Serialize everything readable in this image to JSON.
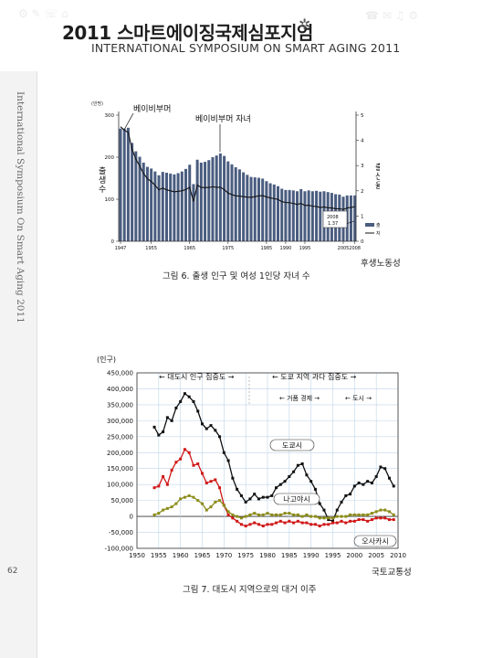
{
  "header": {
    "title_ko": "2011 스마트에이징국제심포지엄",
    "title_en": "INTERNATIONAL SYMPOSIUM ON SMART AGING 2011"
  },
  "sidebar": {
    "vertical_text": "International Symposium On Smart Aging 2011",
    "page_number": "62"
  },
  "figure1": {
    "caption": "그림 6. 출생 인구 및 여성 1인당 자녀 수",
    "source": "후생노동성",
    "unit_label": "(만명)",
    "annotation_baby_boomer": "베이비부머",
    "annotation_boomer_children": "베이비부머 자녀",
    "annotation_2008": "2008",
    "annotation_2008_value": "1.37",
    "chart_data": {
      "type": "bar",
      "title": "",
      "left_axis_label": "출생수",
      "right_axis_label": "출산율",
      "ylim": [
        0,
        300
      ],
      "y2lim": [
        0,
        5
      ],
      "left_ticks": [
        "0",
        "100",
        "200",
        "300"
      ],
      "right_ticks": [
        "0",
        "1",
        "2",
        "3",
        "4",
        "5"
      ],
      "x_ticks": [
        "1947",
        "1955",
        "1965",
        "1975",
        "1985",
        "1990",
        "1995",
        "2005",
        "2008"
      ],
      "legend": [
        "출생 인구",
        "자녀 수"
      ],
      "legend_position": "bottom-right",
      "bar_series": {
        "name": "출생 인구",
        "x": [
          1947,
          1948,
          1949,
          1950,
          1951,
          1952,
          1953,
          1954,
          1955,
          1956,
          1957,
          1958,
          1959,
          1960,
          1961,
          1962,
          1963,
          1964,
          1965,
          1966,
          1967,
          1968,
          1969,
          1970,
          1971,
          1972,
          1973,
          1974,
          1975,
          1976,
          1977,
          1978,
          1979,
          1980,
          1981,
          1982,
          1983,
          1984,
          1985,
          1986,
          1987,
          1988,
          1989,
          1990,
          1991,
          1992,
          1993,
          1994,
          1995,
          1996,
          1997,
          1998,
          1999,
          2000,
          2001,
          2002,
          2003,
          2004,
          2005,
          2006,
          2007,
          2008
        ],
        "values": [
          268,
          268,
          270,
          234,
          214,
          201,
          187,
          177,
          173,
          166,
          157,
          165,
          163,
          161,
          159,
          162,
          166,
          172,
          182,
          136,
          194,
          187,
          189,
          193,
          200,
          204,
          209,
          203,
          190,
          183,
          176,
          171,
          164,
          158,
          153,
          152,
          151,
          149,
          143,
          138,
          135,
          131,
          125,
          122,
          122,
          121,
          119,
          124,
          119,
          121,
          119,
          120,
          118,
          119,
          117,
          115,
          112,
          111,
          106,
          109,
          109,
          109
        ]
      },
      "line_series": {
        "name": "자녀 수",
        "x": [
          1947,
          1948,
          1949,
          1950,
          1951,
          1952,
          1953,
          1954,
          1955,
          1956,
          1957,
          1958,
          1959,
          1960,
          1961,
          1962,
          1963,
          1964,
          1965,
          1966,
          1967,
          1968,
          1969,
          1970,
          1971,
          1972,
          1973,
          1974,
          1975,
          1976,
          1977,
          1978,
          1979,
          1980,
          1981,
          1982,
          1983,
          1984,
          1985,
          1986,
          1987,
          1988,
          1989,
          1990,
          1991,
          1992,
          1993,
          1994,
          1995,
          1996,
          1997,
          1998,
          1999,
          2000,
          2001,
          2002,
          2003,
          2004,
          2005,
          2006,
          2007,
          2008
        ],
        "values": [
          4.54,
          4.4,
          4.32,
          3.65,
          3.26,
          2.98,
          2.69,
          2.48,
          2.37,
          2.22,
          2.04,
          2.11,
          2.04,
          2.0,
          1.96,
          1.98,
          2.0,
          2.05,
          2.14,
          1.58,
          2.23,
          2.13,
          2.13,
          2.13,
          2.16,
          2.14,
          2.14,
          2.05,
          1.91,
          1.85,
          1.8,
          1.79,
          1.77,
          1.75,
          1.74,
          1.77,
          1.8,
          1.81,
          1.76,
          1.72,
          1.69,
          1.66,
          1.57,
          1.54,
          1.53,
          1.5,
          1.46,
          1.5,
          1.42,
          1.43,
          1.39,
          1.38,
          1.34,
          1.36,
          1.33,
          1.32,
          1.29,
          1.29,
          1.26,
          1.32,
          1.34,
          1.37
        ]
      }
    }
  },
  "figure2": {
    "caption": "그림 7. 대도시 지역으로의 대거 이주",
    "source": "국토교통성",
    "unit_label": "(인구)",
    "header_left": "← 대도시 인구 집중도 →",
    "header_right": "← 도쿄 지역 과다 집중도 →",
    "sub_left": "← 거품 경제 →",
    "sub_right": "← 도시 →",
    "chart_data": {
      "type": "line",
      "title": "",
      "ylim": [
        -100000,
        450000
      ],
      "xlim": [
        1950,
        2010
      ],
      "y_ticks": [
        "450,000",
        "400,000",
        "350,000",
        "300,000",
        "250,000",
        "200,000",
        "150,000",
        "100,000",
        "50,000",
        "0",
        "-50,000",
        "-100,000"
      ],
      "x_ticks": [
        "1950",
        "1955",
        "1960",
        "1965",
        "1970",
        "1975",
        "1980",
        "1985",
        "1990",
        "1995",
        "2000",
        "2005",
        "2010"
      ],
      "grid": true,
      "series": [
        {
          "name": "도쿄시",
          "color": "#111111",
          "x": [
            1954,
            1955,
            1956,
            1957,
            1958,
            1959,
            1960,
            1961,
            1962,
            1963,
            1964,
            1965,
            1966,
            1967,
            1968,
            1969,
            1970,
            1971,
            1972,
            1973,
            1974,
            1975,
            1976,
            1977,
            1978,
            1979,
            1980,
            1981,
            1982,
            1983,
            1984,
            1985,
            1986,
            1987,
            1988,
            1989,
            1990,
            1991,
            1992,
            1993,
            1994,
            1995,
            1996,
            1997,
            1998,
            1999,
            2000,
            2001,
            2002,
            2003,
            2004,
            2005,
            2006,
            2007,
            2008,
            2009
          ],
          "values": [
            280000,
            255000,
            265000,
            310000,
            300000,
            340000,
            360000,
            385000,
            375000,
            360000,
            330000,
            290000,
            275000,
            285000,
            270000,
            250000,
            200000,
            175000,
            120000,
            85000,
            65000,
            45000,
            55000,
            70000,
            55000,
            60000,
            60000,
            65000,
            90000,
            100000,
            110000,
            125000,
            140000,
            160000,
            165000,
            130000,
            110000,
            85000,
            40000,
            20000,
            -10000,
            -15000,
            20000,
            45000,
            65000,
            70000,
            95000,
            105000,
            100000,
            110000,
            105000,
            125000,
            155000,
            150000,
            120000,
            95000
          ]
        },
        {
          "name": "나고야시",
          "color": "#d01818",
          "x": [
            1954,
            1955,
            1956,
            1957,
            1958,
            1959,
            1960,
            1961,
            1962,
            1963,
            1964,
            1965,
            1966,
            1967,
            1968,
            1969,
            1970,
            1971,
            1972,
            1973,
            1974,
            1975,
            1976,
            1977,
            1978,
            1979,
            1980,
            1981,
            1982,
            1983,
            1984,
            1985,
            1986,
            1987,
            1988,
            1989,
            1990,
            1991,
            1992,
            1993,
            1994,
            1995,
            1996,
            1997,
            1998,
            1999,
            2000,
            2001,
            2002,
            2003,
            2004,
            2005,
            2006,
            2007,
            2008,
            2009
          ],
          "values": [
            90000,
            95000,
            125000,
            100000,
            145000,
            170000,
            180000,
            210000,
            200000,
            160000,
            165000,
            135000,
            105000,
            110000,
            115000,
            90000,
            35000,
            5000,
            -5000,
            -15000,
            -25000,
            -30000,
            -25000,
            -20000,
            -25000,
            -30000,
            -25000,
            -25000,
            -20000,
            -15000,
            -20000,
            -15000,
            -20000,
            -15000,
            -20000,
            -20000,
            -25000,
            -25000,
            -30000,
            -25000,
            -25000,
            -20000,
            -20000,
            -15000,
            -20000,
            -15000,
            -15000,
            -10000,
            -10000,
            -15000,
            -10000,
            -5000,
            -5000,
            -5000,
            -10000,
            -10000
          ]
        },
        {
          "name": "오사카시",
          "color": "#8c8c1a",
          "x": [
            1954,
            1955,
            1956,
            1957,
            1958,
            1959,
            1960,
            1961,
            1962,
            1963,
            1964,
            1965,
            1966,
            1967,
            1968,
            1969,
            1970,
            1971,
            1972,
            1973,
            1974,
            1975,
            1976,
            1977,
            1978,
            1979,
            1980,
            1981,
            1982,
            1983,
            1984,
            1985,
            1986,
            1987,
            1988,
            1989,
            1990,
            1991,
            1992,
            1993,
            1994,
            1995,
            1996,
            1997,
            1998,
            1999,
            2000,
            2001,
            2002,
            2003,
            2004,
            2005,
            2006,
            2007,
            2008,
            2009
          ],
          "values": [
            5000,
            10000,
            20000,
            25000,
            30000,
            40000,
            55000,
            60000,
            65000,
            60000,
            50000,
            40000,
            20000,
            30000,
            45000,
            50000,
            35000,
            15000,
            5000,
            0,
            -5000,
            0,
            5000,
            10000,
            5000,
            5000,
            10000,
            5000,
            5000,
            5000,
            10000,
            10000,
            5000,
            5000,
            0,
            5000,
            0,
            0,
            -5000,
            -5000,
            -5000,
            -5000,
            0,
            0,
            0,
            5000,
            5000,
            5000,
            5000,
            5000,
            10000,
            15000,
            20000,
            20000,
            15000,
            5000
          ]
        }
      ]
    }
  }
}
